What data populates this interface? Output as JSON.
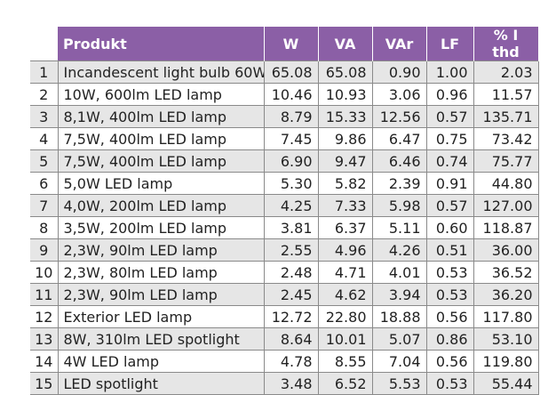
{
  "headers": {
    "product": "Produkt",
    "w": "W",
    "va": "VA",
    "var": "VAr",
    "lf": "LF",
    "thd": "% I thd"
  },
  "rows": [
    {
      "n": "1",
      "product": "Incandescent light bulb 60W",
      "w": "65.08",
      "va": "65.08",
      "var": "0.90",
      "lf": "1.00",
      "thd": "2.03"
    },
    {
      "n": "2",
      "product": "10W, 600lm LED lamp",
      "w": "10.46",
      "va": "10.93",
      "var": "3.06",
      "lf": "0.96",
      "thd": "11.57"
    },
    {
      "n": "3",
      "product": "8,1W, 400lm LED lamp",
      "w": "8.79",
      "va": "15.33",
      "var": "12.56",
      "lf": "0.57",
      "thd": "135.71"
    },
    {
      "n": "4",
      "product": "7,5W, 400lm LED lamp",
      "w": "7.45",
      "va": "9.86",
      "var": "6.47",
      "lf": "0.75",
      "thd": "73.42"
    },
    {
      "n": "5",
      "product": "7,5W, 400lm LED lamp",
      "w": "6.90",
      "va": "9.47",
      "var": "6.46",
      "lf": "0.74",
      "thd": "75.77"
    },
    {
      "n": "6",
      "product": "5,0W LED lamp",
      "w": "5.30",
      "va": "5.82",
      "var": "2.39",
      "lf": "0.91",
      "thd": "44.80"
    },
    {
      "n": "7",
      "product": "4,0W, 200lm LED lamp",
      "w": "4.25",
      "va": "7.33",
      "var": "5.98",
      "lf": "0.57",
      "thd": "127.00"
    },
    {
      "n": "8",
      "product": "3,5W, 200lm LED lamp",
      "w": "3.81",
      "va": "6.37",
      "var": "5.11",
      "lf": "0.60",
      "thd": "118.87"
    },
    {
      "n": "9",
      "product": "2,3W, 90lm LED lamp",
      "w": "2.55",
      "va": "4.96",
      "var": "4.26",
      "lf": "0.51",
      "thd": "36.00"
    },
    {
      "n": "10",
      "product": "2,3W, 80lm LED lamp",
      "w": "2.48",
      "va": "4.71",
      "var": "4.01",
      "lf": "0.53",
      "thd": "36.52"
    },
    {
      "n": "11",
      "product": "2,3W, 90lm LED lamp",
      "w": "2.45",
      "va": "4.62",
      "var": "3.94",
      "lf": "0.53",
      "thd": "36.20"
    },
    {
      "n": "12",
      "product": "Exterior LED lamp",
      "w": "12.72",
      "va": "22.80",
      "var": "18.88",
      "lf": "0.56",
      "thd": "117.80"
    },
    {
      "n": "13",
      "product": "8W, 310lm LED spotlight",
      "w": "8.64",
      "va": "10.01",
      "var": "5.07",
      "lf": "0.86",
      "thd": "53.10"
    },
    {
      "n": "14",
      "product": "4W LED lamp",
      "w": "4.78",
      "va": "8.55",
      "var": "7.04",
      "lf": "0.56",
      "thd": "119.80"
    },
    {
      "n": "15",
      "product": "LED spotlight",
      "w": "3.48",
      "va": "6.52",
      "var": "5.53",
      "lf": "0.53",
      "thd": "55.44"
    }
  ]
}
